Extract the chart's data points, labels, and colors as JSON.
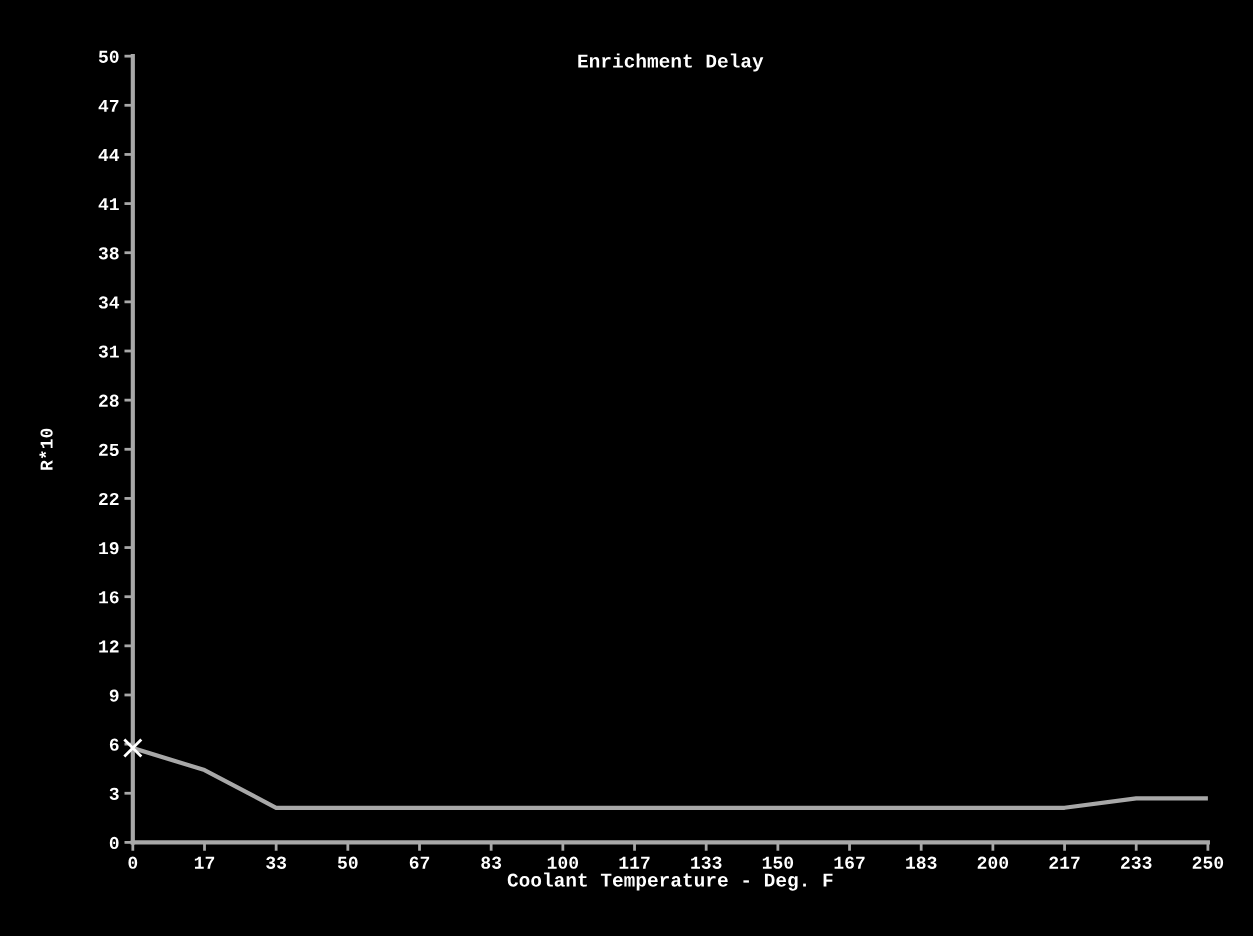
{
  "chart_data": {
    "type": "line",
    "title": "Enrichment Delay",
    "xlabel": "Coolant Temperature - Deg. F",
    "ylabel": "R*10",
    "xlim": [
      0,
      250
    ],
    "ylim": [
      0,
      50
    ],
    "xticks": [
      {
        "value": 0,
        "label": "0"
      },
      {
        "value": 16.67,
        "label": "17"
      },
      {
        "value": 33.33,
        "label": "33"
      },
      {
        "value": 50,
        "label": "50"
      },
      {
        "value": 66.67,
        "label": "67"
      },
      {
        "value": 83.33,
        "label": "83"
      },
      {
        "value": 100,
        "label": "100"
      },
      {
        "value": 116.67,
        "label": "117"
      },
      {
        "value": 133.33,
        "label": "133"
      },
      {
        "value": 150,
        "label": "150"
      },
      {
        "value": 166.67,
        "label": "167"
      },
      {
        "value": 183.33,
        "label": "183"
      },
      {
        "value": 200,
        "label": "200"
      },
      {
        "value": 216.67,
        "label": "217"
      },
      {
        "value": 233.33,
        "label": "233"
      },
      {
        "value": 250,
        "label": "250"
      }
    ],
    "yticks": [
      {
        "value": 0,
        "label": "0"
      },
      {
        "value": 3.125,
        "label": "3"
      },
      {
        "value": 6.25,
        "label": "6"
      },
      {
        "value": 9.375,
        "label": "9"
      },
      {
        "value": 12.5,
        "label": "12"
      },
      {
        "value": 15.625,
        "label": "16"
      },
      {
        "value": 18.75,
        "label": "19"
      },
      {
        "value": 21.875,
        "label": "22"
      },
      {
        "value": 25,
        "label": "25"
      },
      {
        "value": 28.125,
        "label": "28"
      },
      {
        "value": 31.25,
        "label": "31"
      },
      {
        "value": 34.375,
        "label": "34"
      },
      {
        "value": 37.5,
        "label": "38"
      },
      {
        "value": 40.625,
        "label": "41"
      },
      {
        "value": 43.75,
        "label": "44"
      },
      {
        "value": 46.875,
        "label": "47"
      },
      {
        "value": 50,
        "label": "50"
      }
    ],
    "grid": false,
    "series": [
      {
        "type": "line",
        "color": "#a8a8a8",
        "x": [
          0,
          16.67,
          33.33,
          216.67,
          233.33,
          250
        ],
        "values": [
          6.0,
          4.6,
          2.2,
          2.2,
          2.8,
          2.8
        ]
      },
      {
        "type": "scatter",
        "color": "#ffffff",
        "marker": "cross",
        "x": [
          0
        ],
        "values": [
          6.0
        ]
      }
    ]
  }
}
